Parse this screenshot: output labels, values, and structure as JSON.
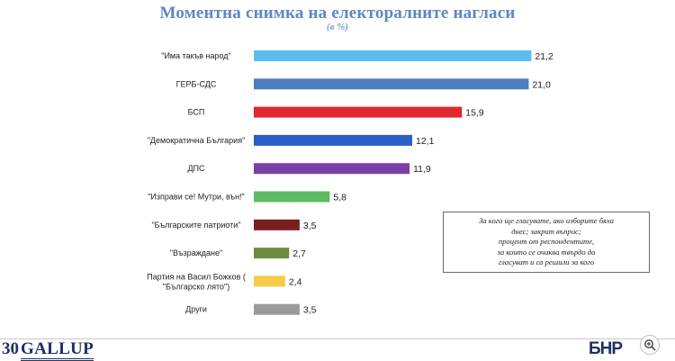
{
  "title": "Моментна снимка на електоралните нагласи",
  "subtitle": "(в %)",
  "chart_data": {
    "type": "bar",
    "orientation": "horizontal",
    "title": "Моментна снимка на електоралните нагласи",
    "subtitle": "(в %)",
    "categories": [
      "\"Има такъв народ\"",
      "ГЕРБ-СДС",
      "БСП",
      "\"Демократична България\"",
      "ДПС",
      "\"Изправи се! Мутри, вън!\"",
      "\"Българските патриоти\"",
      "\"Възраждане\"",
      "Партия на Васил Божков (\"Българско лято\")",
      "Други"
    ],
    "values": [
      21.2,
      21.0,
      15.9,
      12.1,
      11.9,
      5.8,
      3.5,
      2.7,
      2.4,
      3.5
    ],
    "value_labels": [
      "21,2",
      "21,0",
      "15,9",
      "12,1",
      "11,9",
      "5,8",
      "3,5",
      "2,7",
      "2,4",
      "3,5"
    ],
    "colors": [
      "#5bbcf1",
      "#4c7ec0",
      "#e1282c",
      "#2a5fc9",
      "#7c3fa8",
      "#5cba62",
      "#7a1f1f",
      "#6b8e3e",
      "#f4cc46",
      "#9a9a9a"
    ],
    "xlim": [
      0,
      22
    ],
    "grid": false,
    "legend": "none",
    "xlabel": "",
    "ylabel": ""
  },
  "note": {
    "lines": [
      "За кого ще гласувате, ако изборите бяха",
      "днес; закрит въпрос;",
      "процент от респондентите,",
      "за които се очаква твърдо да",
      "гласуват и са решили за кого"
    ]
  },
  "footer": {
    "gallup_number": "30",
    "gallup_word": "GALLUP",
    "bnr_text": "БНР"
  },
  "icons": {
    "zoom": "zoom-in-icon"
  }
}
